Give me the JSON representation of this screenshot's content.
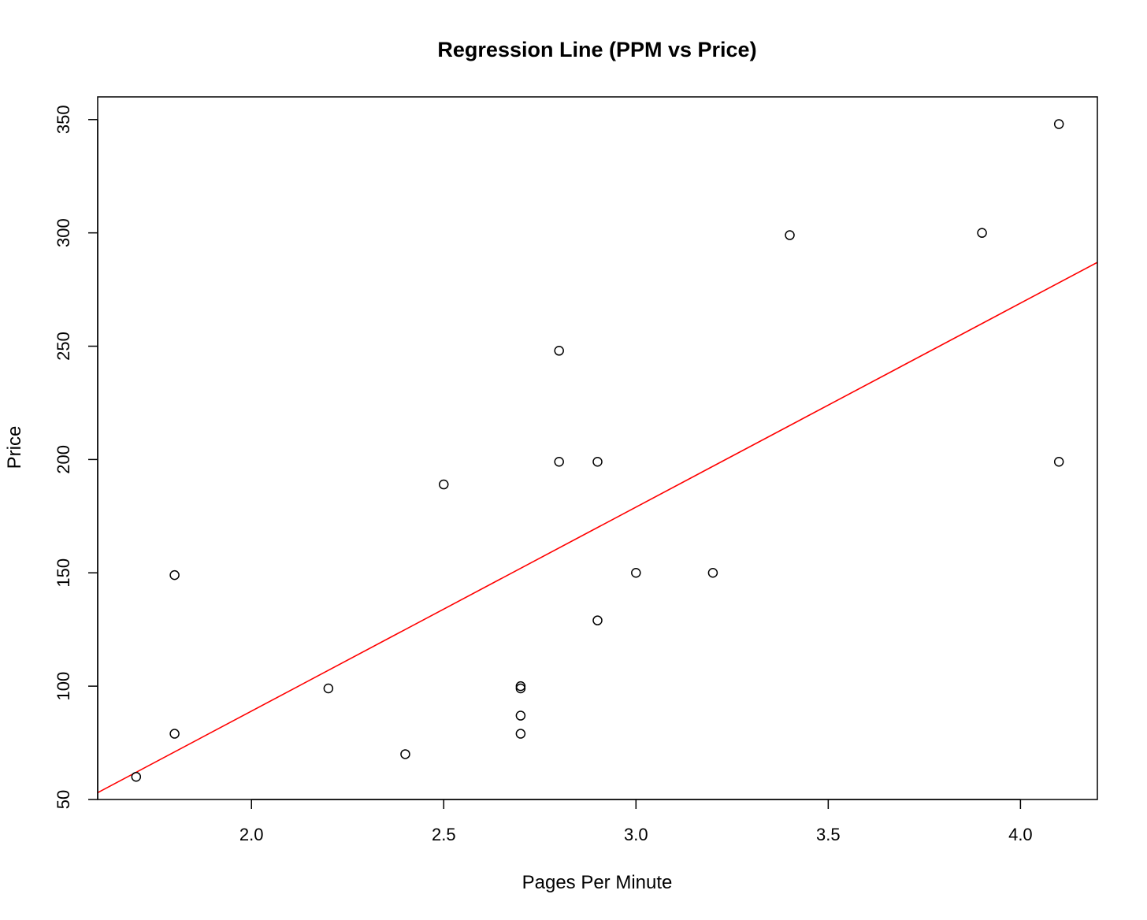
{
  "chart_data": {
    "type": "scatter",
    "title": "Regression Line (PPM vs Price)",
    "xlabel": "Pages Per Minute",
    "ylabel": "Price",
    "xlim": [
      1.6,
      4.2
    ],
    "ylim": [
      50,
      360
    ],
    "xticks": [
      "2.0",
      "2.5",
      "3.0",
      "3.5",
      "4.0"
    ],
    "yticks": [
      "50",
      "100",
      "150",
      "200",
      "250",
      "300",
      "350"
    ],
    "grid": false,
    "points": [
      {
        "x": 1.7,
        "y": 60
      },
      {
        "x": 1.8,
        "y": 79
      },
      {
        "x": 1.8,
        "y": 149
      },
      {
        "x": 2.2,
        "y": 99
      },
      {
        "x": 2.4,
        "y": 70
      },
      {
        "x": 2.5,
        "y": 189
      },
      {
        "x": 2.7,
        "y": 100
      },
      {
        "x": 2.7,
        "y": 99
      },
      {
        "x": 2.7,
        "y": 87
      },
      {
        "x": 2.7,
        "y": 79
      },
      {
        "x": 2.8,
        "y": 248
      },
      {
        "x": 2.8,
        "y": 199
      },
      {
        "x": 2.9,
        "y": 199
      },
      {
        "x": 2.9,
        "y": 129
      },
      {
        "x": 3.0,
        "y": 150
      },
      {
        "x": 3.2,
        "y": 150
      },
      {
        "x": 3.4,
        "y": 299
      },
      {
        "x": 3.9,
        "y": 300
      },
      {
        "x": 4.1,
        "y": 348
      },
      {
        "x": 4.1,
        "y": 199
      }
    ],
    "regression_line": {
      "intercept": -91.0,
      "slope": 90.0
    },
    "colors": {
      "points": "#000000",
      "line": "#ff0000"
    }
  }
}
